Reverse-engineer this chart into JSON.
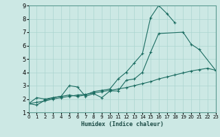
{
  "title": "",
  "xlabel": "Humidex (Indice chaleur)",
  "bg_color": "#cce8e4",
  "grid_color": "#aad4cf",
  "line_color": "#1a6b60",
  "xlim": [
    0,
    23
  ],
  "ylim": [
    1,
    9
  ],
  "xticks": [
    0,
    1,
    2,
    3,
    4,
    5,
    6,
    7,
    8,
    9,
    10,
    11,
    12,
    13,
    14,
    15,
    16,
    17,
    18,
    19,
    20,
    21,
    22,
    23
  ],
  "yticks": [
    1,
    2,
    3,
    4,
    5,
    6,
    7,
    8,
    9
  ],
  "series": [
    {
      "x": [
        0,
        1,
        2,
        3,
        4,
        5,
        6,
        7,
        8,
        9,
        10,
        11,
        12,
        13,
        14,
        15,
        16,
        17,
        18
      ],
      "y": [
        1.65,
        2.1,
        2.0,
        2.1,
        2.2,
        2.3,
        2.2,
        2.3,
        2.55,
        2.65,
        2.75,
        3.5,
        4.0,
        4.7,
        5.4,
        8.1,
        9.0,
        8.4,
        7.7
      ]
    },
    {
      "x": [
        0,
        1,
        2,
        3,
        4,
        5,
        6,
        7,
        8,
        9,
        10,
        11,
        12,
        13,
        14,
        15,
        16,
        19,
        20,
        21,
        23
      ],
      "y": [
        1.65,
        1.55,
        1.9,
        2.1,
        2.2,
        3.0,
        2.9,
        2.2,
        2.4,
        2.1,
        2.6,
        2.6,
        3.4,
        3.5,
        4.0,
        5.5,
        6.9,
        7.0,
        6.1,
        5.7,
        4.15
      ]
    },
    {
      "x": [
        0,
        1,
        2,
        3,
        4,
        5,
        6,
        7,
        8,
        9,
        10,
        11,
        12,
        13,
        14,
        15,
        16,
        17,
        18,
        19,
        20,
        21,
        22,
        23
      ],
      "y": [
        1.65,
        1.75,
        1.85,
        2.0,
        2.1,
        2.2,
        2.3,
        2.35,
        2.45,
        2.55,
        2.65,
        2.75,
        2.85,
        3.0,
        3.15,
        3.3,
        3.5,
        3.65,
        3.8,
        3.95,
        4.1,
        4.2,
        4.3,
        4.15
      ]
    }
  ]
}
